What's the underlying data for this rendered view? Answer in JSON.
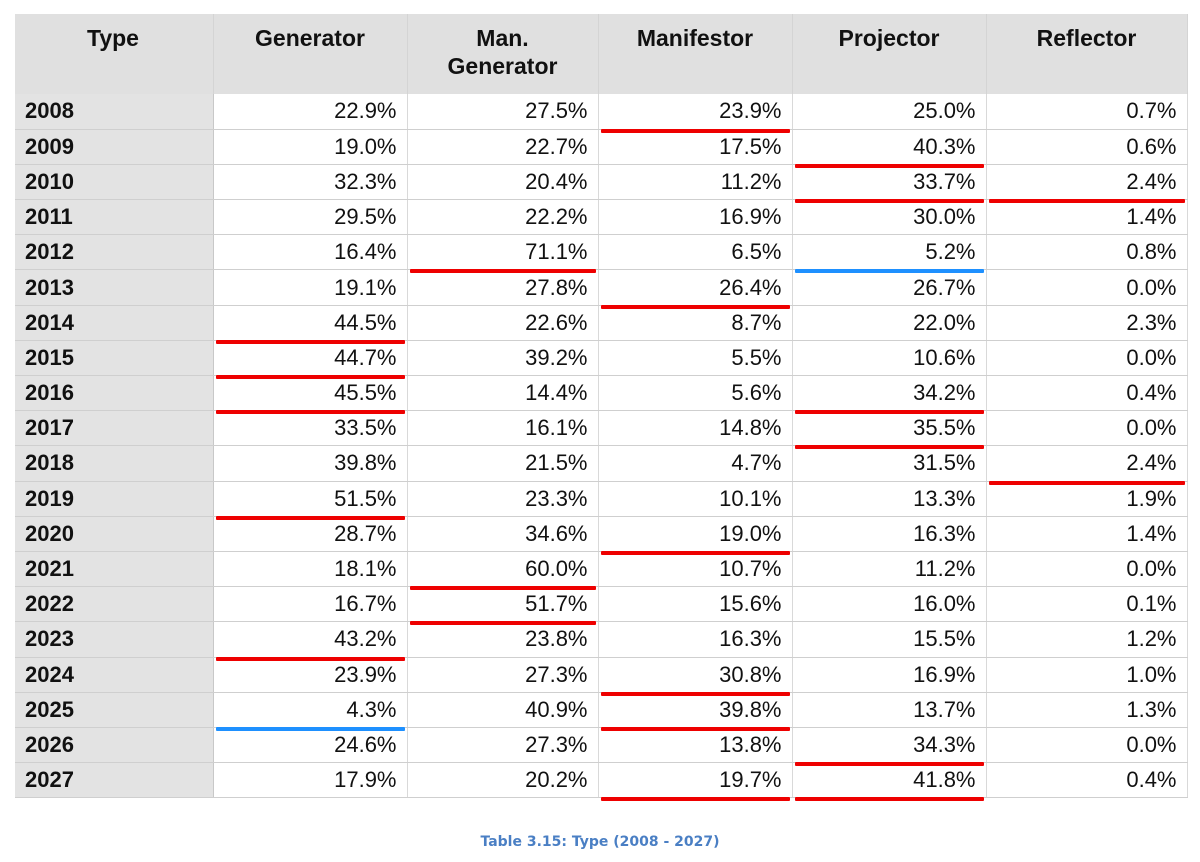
{
  "table": {
    "headers": [
      "Type",
      "Generator",
      "Man.\nGenerator",
      "Manifestor",
      "Projector",
      "Reflector"
    ],
    "rows": [
      {
        "year": "2008",
        "values": [
          "22.9%",
          "27.5%",
          "23.9%",
          "25.0%",
          "0.7%"
        ],
        "marks": {
          "2": "red"
        }
      },
      {
        "year": "2009",
        "values": [
          "19.0%",
          "22.7%",
          "17.5%",
          "40.3%",
          "0.6%"
        ],
        "marks": {
          "3": "red"
        }
      },
      {
        "year": "2010",
        "values": [
          "32.3%",
          "20.4%",
          "11.2%",
          "33.7%",
          "2.4%"
        ],
        "marks": {
          "3": "red",
          "4": "red"
        }
      },
      {
        "year": "2011",
        "values": [
          "29.5%",
          "22.2%",
          "16.9%",
          "30.0%",
          "1.4%"
        ],
        "marks": {}
      },
      {
        "year": "2012",
        "values": [
          "16.4%",
          "71.1%",
          "6.5%",
          "5.2%",
          "0.8%"
        ],
        "marks": {
          "1": "red",
          "3": "blue"
        }
      },
      {
        "year": "2013",
        "values": [
          "19.1%",
          "27.8%",
          "26.4%",
          "26.7%",
          "0.0%"
        ],
        "marks": {
          "2": "red"
        }
      },
      {
        "year": "2014",
        "values": [
          "44.5%",
          "22.6%",
          "8.7%",
          "22.0%",
          "2.3%"
        ],
        "marks": {
          "0": "red"
        }
      },
      {
        "year": "2015",
        "values": [
          "44.7%",
          "39.2%",
          "5.5%",
          "10.6%",
          "0.0%"
        ],
        "marks": {
          "0": "red"
        }
      },
      {
        "year": "2016",
        "values": [
          "45.5%",
          "14.4%",
          "5.6%",
          "34.2%",
          "0.4%"
        ],
        "marks": {
          "0": "red",
          "3": "red"
        }
      },
      {
        "year": "2017",
        "values": [
          "33.5%",
          "16.1%",
          "14.8%",
          "35.5%",
          "0.0%"
        ],
        "marks": {
          "3": "red"
        }
      },
      {
        "year": "2018",
        "values": [
          "39.8%",
          "21.5%",
          "4.7%",
          "31.5%",
          "2.4%"
        ],
        "marks": {
          "4": "red"
        }
      },
      {
        "year": "2019",
        "values": [
          "51.5%",
          "23.3%",
          "10.1%",
          "13.3%",
          "1.9%"
        ],
        "marks": {
          "0": "red"
        }
      },
      {
        "year": "2020",
        "values": [
          "28.7%",
          "34.6%",
          "19.0%",
          "16.3%",
          "1.4%"
        ],
        "marks": {
          "2": "red"
        }
      },
      {
        "year": "2021",
        "values": [
          "18.1%",
          "60.0%",
          "10.7%",
          "11.2%",
          "0.0%"
        ],
        "marks": {
          "1": "red"
        }
      },
      {
        "year": "2022",
        "values": [
          "16.7%",
          "51.7%",
          "15.6%",
          "16.0%",
          "0.1%"
        ],
        "marks": {
          "1": "red"
        }
      },
      {
        "year": "2023",
        "values": [
          "43.2%",
          "23.8%",
          "16.3%",
          "15.5%",
          "1.2%"
        ],
        "marks": {
          "0": "red"
        }
      },
      {
        "year": "2024",
        "values": [
          "23.9%",
          "27.3%",
          "30.8%",
          "16.9%",
          "1.0%"
        ],
        "marks": {
          "2": "red"
        }
      },
      {
        "year": "2025",
        "values": [
          "4.3%",
          "40.9%",
          "39.8%",
          "13.7%",
          "1.3%"
        ],
        "marks": {
          "0": "blue",
          "2": "red"
        }
      },
      {
        "year": "2026",
        "values": [
          "24.6%",
          "27.3%",
          "13.8%",
          "34.3%",
          "0.0%"
        ],
        "marks": {
          "3": "red"
        }
      },
      {
        "year": "2027",
        "values": [
          "17.9%",
          "20.2%",
          "19.7%",
          "41.8%",
          "0.4%"
        ],
        "marks": {
          "2": "red",
          "3": "red"
        }
      }
    ]
  },
  "caption": "Table 3.15: Type (2008 - 2027)",
  "colors": {
    "highlight_red": "#ee0000",
    "highlight_blue": "#1e90ff",
    "caption": "#4a7fc4",
    "header_bg": "#e0e0e0"
  }
}
